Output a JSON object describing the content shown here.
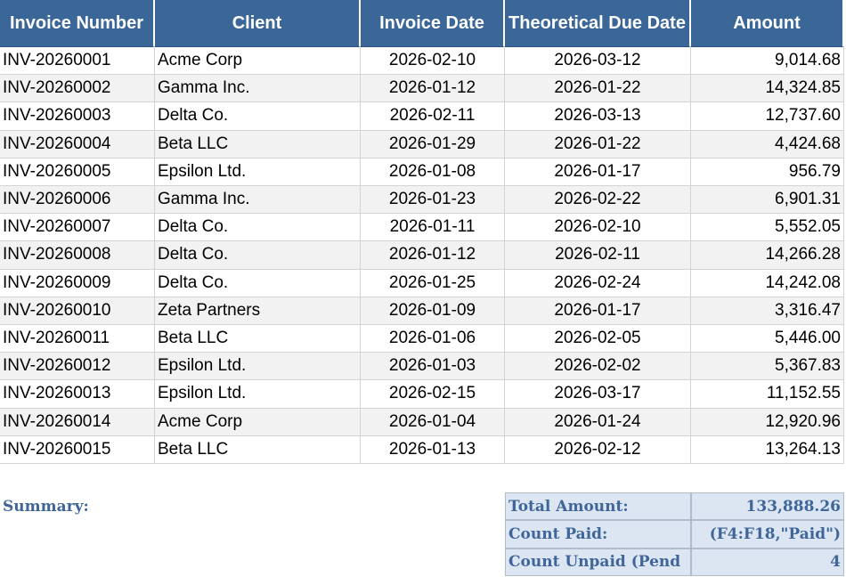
{
  "table": {
    "header": [
      "Invoice Number",
      "Client",
      "Invoice Date",
      "Theoretical Due Date",
      "Amount"
    ],
    "rows": [
      [
        "INV-20260001",
        "Acme Corp",
        "2026-02-10",
        "2026-03-12",
        "9,014.68"
      ],
      [
        "INV-20260002",
        "Gamma Inc.",
        "2026-01-12",
        "2026-01-22",
        "14,324.85"
      ],
      [
        "INV-20260003",
        "Delta Co.",
        "2026-02-11",
        "2026-03-13",
        "12,737.60"
      ],
      [
        "INV-20260004",
        "Beta LLC",
        "2026-01-29",
        "2026-01-22",
        "4,424.68"
      ],
      [
        "INV-20260005",
        "Epsilon Ltd.",
        "2026-01-08",
        "2026-01-17",
        "956.79"
      ],
      [
        "INV-20260006",
        "Gamma Inc.",
        "2026-01-23",
        "2026-02-22",
        "6,901.31"
      ],
      [
        "INV-20260007",
        "Delta Co.",
        "2026-01-11",
        "2026-02-10",
        "5,552.05"
      ],
      [
        "INV-20260008",
        "Delta Co.",
        "2026-01-12",
        "2026-02-11",
        "14,266.28"
      ],
      [
        "INV-20260009",
        "Delta Co.",
        "2026-01-25",
        "2026-02-24",
        "14,242.08"
      ],
      [
        "INV-20260010",
        "Zeta Partners",
        "2026-01-09",
        "2026-01-17",
        "3,316.47"
      ],
      [
        "INV-20260011",
        "Beta LLC",
        "2026-01-06",
        "2026-02-05",
        "5,446.00"
      ],
      [
        "INV-20260012",
        "Epsilon Ltd.",
        "2026-01-03",
        "2026-02-02",
        "5,367.83"
      ],
      [
        "INV-20260013",
        "Epsilon Ltd.",
        "2026-02-15",
        "2026-03-17",
        "11,152.55"
      ],
      [
        "INV-20260014",
        "Acme Corp",
        "2026-01-04",
        "2026-01-24",
        "12,920.96"
      ],
      [
        "INV-20260015",
        "Beta LLC",
        "2026-01-13",
        "2026-02-12",
        "13,264.13"
      ]
    ]
  },
  "summary": {
    "title": "Summary:",
    "rows": [
      [
        "Total Amount:",
        "133,888.26"
      ],
      [
        "Count Paid:",
        "(F4:F18,\"Paid\")"
      ],
      [
        "Count Unpaid (Pend",
        "4"
      ]
    ]
  }
}
